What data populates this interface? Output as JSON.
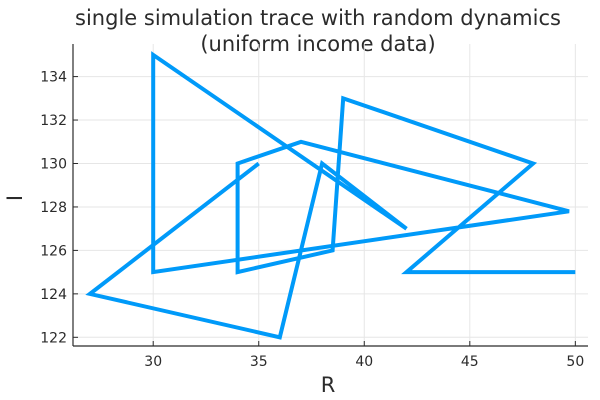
{
  "chart_data": {
    "type": "line",
    "title_lines": [
      "single simulation trace with random dynamics",
      "(uniform income data)"
    ],
    "xlabel": "R",
    "ylabel": "I",
    "xlim": [
      26.2,
      50.6
    ],
    "ylim": [
      121.6,
      135.5
    ],
    "xticks": [
      30,
      35,
      40,
      45,
      50
    ],
    "yticks": [
      122,
      124,
      126,
      128,
      130,
      132,
      134
    ],
    "grid": true,
    "legend": false,
    "series_color": "#009af9",
    "x": [
      35,
      27,
      36,
      38,
      42,
      30,
      30,
      49.7,
      37,
      34,
      34,
      38.5,
      39,
      48,
      42,
      50,
      50
    ],
    "y": [
      130,
      124,
      122,
      130,
      127,
      135,
      125,
      127.8,
      131,
      130,
      125,
      126,
      133,
      130,
      125,
      125,
      125
    ]
  }
}
